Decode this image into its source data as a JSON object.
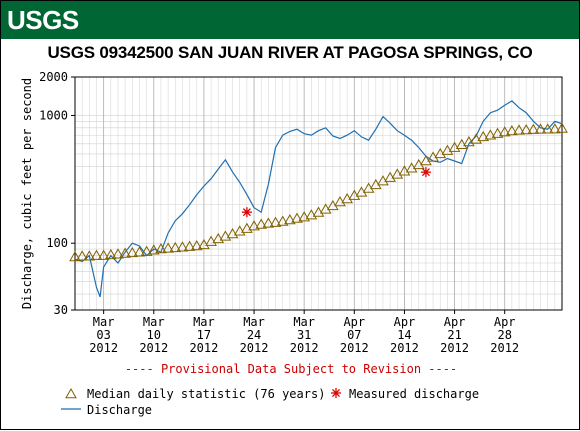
{
  "brand": {
    "logo_text": "USGS",
    "banner_color": "#006633"
  },
  "chart_data": {
    "type": "line",
    "title": "USGS 09342500 SAN JUAN RIVER AT PAGOSA SPRINGS, CO",
    "ylabel": "Discharge, cubic feet per second",
    "yscale": "log",
    "ylim": [
      30,
      2000
    ],
    "y_ticks": [
      {
        "value": 30,
        "label": "30"
      },
      {
        "value": 100,
        "label": "100"
      },
      {
        "value": 1000,
        "label": "1000"
      },
      {
        "value": 2000,
        "label": "2000"
      }
    ],
    "xlim": [
      "2012-02-28",
      "2012-05-06"
    ],
    "x_ticks": [
      {
        "date": "2012-03-03",
        "line1": "Mar",
        "line2": "03",
        "line3": "2012"
      },
      {
        "date": "2012-03-10",
        "line1": "Mar",
        "line2": "10",
        "line3": "2012"
      },
      {
        "date": "2012-03-17",
        "line1": "Mar",
        "line2": "17",
        "line3": "2012"
      },
      {
        "date": "2012-03-24",
        "line1": "Mar",
        "line2": "24",
        "line3": "2012"
      },
      {
        "date": "2012-03-31",
        "line1": "Mar",
        "line2": "31",
        "line3": "2012"
      },
      {
        "date": "2012-04-07",
        "line1": "Apr",
        "line2": "07",
        "line3": "2012"
      },
      {
        "date": "2012-04-14",
        "line1": "Apr",
        "line2": "14",
        "line3": "2012"
      },
      {
        "date": "2012-04-21",
        "line1": "Apr",
        "line2": "21",
        "line3": "2012"
      },
      {
        "date": "2012-04-28",
        "line1": "Apr",
        "line2": "28",
        "line3": "2012"
      }
    ],
    "grid": true,
    "provisional_note": "---- Provisional Data Subject to Revision ----",
    "series": [
      {
        "name": "Discharge",
        "kind": "line",
        "color": "#1f6fb0",
        "points": [
          [
            "2012-02-28",
            75
          ],
          [
            "2012-02-29",
            72
          ],
          [
            "2012-03-01",
            80
          ],
          [
            "2012-03-02",
            45
          ],
          [
            "2012-03-02T12",
            38
          ],
          [
            "2012-03-03",
            65
          ],
          [
            "2012-03-04",
            80
          ],
          [
            "2012-03-05",
            70
          ],
          [
            "2012-03-06",
            85
          ],
          [
            "2012-03-07",
            100
          ],
          [
            "2012-03-08",
            95
          ],
          [
            "2012-03-09",
            80
          ],
          [
            "2012-03-10",
            90
          ],
          [
            "2012-03-11",
            85
          ],
          [
            "2012-03-12",
            120
          ],
          [
            "2012-03-13",
            150
          ],
          [
            "2012-03-14",
            170
          ],
          [
            "2012-03-15",
            200
          ],
          [
            "2012-03-16",
            240
          ],
          [
            "2012-03-17",
            280
          ],
          [
            "2012-03-18",
            320
          ],
          [
            "2012-03-19",
            380
          ],
          [
            "2012-03-20",
            450
          ],
          [
            "2012-03-21",
            360
          ],
          [
            "2012-03-22",
            300
          ],
          [
            "2012-03-23",
            240
          ],
          [
            "2012-03-24",
            190
          ],
          [
            "2012-03-25",
            175
          ],
          [
            "2012-03-26",
            290
          ],
          [
            "2012-03-27",
            560
          ],
          [
            "2012-03-28",
            700
          ],
          [
            "2012-03-29",
            750
          ],
          [
            "2012-03-30",
            780
          ],
          [
            "2012-03-31",
            720
          ],
          [
            "2012-04-01",
            700
          ],
          [
            "2012-04-02",
            760
          ],
          [
            "2012-04-03",
            800
          ],
          [
            "2012-04-04",
            690
          ],
          [
            "2012-04-05",
            660
          ],
          [
            "2012-04-06",
            700
          ],
          [
            "2012-04-07",
            760
          ],
          [
            "2012-04-08",
            680
          ],
          [
            "2012-04-09",
            640
          ],
          [
            "2012-04-10",
            780
          ],
          [
            "2012-04-11",
            980
          ],
          [
            "2012-04-12",
            870
          ],
          [
            "2012-04-13",
            760
          ],
          [
            "2012-04-14",
            700
          ],
          [
            "2012-04-15",
            640
          ],
          [
            "2012-04-16",
            560
          ],
          [
            "2012-04-17",
            480
          ],
          [
            "2012-04-18",
            440
          ],
          [
            "2012-04-19",
            430
          ],
          [
            "2012-04-20",
            460
          ],
          [
            "2012-04-21",
            440
          ],
          [
            "2012-04-22",
            420
          ],
          [
            "2012-04-23",
            600
          ],
          [
            "2012-04-24",
            690
          ],
          [
            "2012-04-25",
            900
          ],
          [
            "2012-04-26",
            1050
          ],
          [
            "2012-04-27",
            1100
          ],
          [
            "2012-04-28",
            1200
          ],
          [
            "2012-04-29",
            1300
          ],
          [
            "2012-04-30",
            1150
          ],
          [
            "2012-05-01",
            1050
          ],
          [
            "2012-05-02",
            900
          ],
          [
            "2012-05-03",
            800
          ],
          [
            "2012-05-04",
            780
          ],
          [
            "2012-05-05",
            900
          ],
          [
            "2012-05-06",
            860
          ]
        ]
      },
      {
        "name": "Median daily statistic (76 years)",
        "kind": "markers",
        "marker": "triangle",
        "color": "#806000",
        "points": [
          [
            "2012-02-28",
            78
          ],
          [
            "2012-02-29",
            79
          ],
          [
            "2012-03-01",
            79
          ],
          [
            "2012-03-02",
            80
          ],
          [
            "2012-03-03",
            80
          ],
          [
            "2012-03-04",
            81
          ],
          [
            "2012-03-05",
            82
          ],
          [
            "2012-03-06",
            83
          ],
          [
            "2012-03-07",
            84
          ],
          [
            "2012-03-08",
            85
          ],
          [
            "2012-03-09",
            86
          ],
          [
            "2012-03-10",
            88
          ],
          [
            "2012-03-11",
            90
          ],
          [
            "2012-03-12",
            91
          ],
          [
            "2012-03-13",
            92
          ],
          [
            "2012-03-14",
            93
          ],
          [
            "2012-03-15",
            94
          ],
          [
            "2012-03-16",
            95
          ],
          [
            "2012-03-17",
            97
          ],
          [
            "2012-03-18",
            103
          ],
          [
            "2012-03-19",
            108
          ],
          [
            "2012-03-20",
            113
          ],
          [
            "2012-03-21",
            118
          ],
          [
            "2012-03-22",
            124
          ],
          [
            "2012-03-23",
            130
          ],
          [
            "2012-03-24",
            136
          ],
          [
            "2012-03-25",
            140
          ],
          [
            "2012-03-26",
            143
          ],
          [
            "2012-03-27",
            145
          ],
          [
            "2012-03-28",
            148
          ],
          [
            "2012-03-29",
            152
          ],
          [
            "2012-03-30",
            156
          ],
          [
            "2012-03-31",
            160
          ],
          [
            "2012-04-01",
            166
          ],
          [
            "2012-04-02",
            174
          ],
          [
            "2012-04-03",
            184
          ],
          [
            "2012-04-04",
            196
          ],
          [
            "2012-04-05",
            210
          ],
          [
            "2012-04-06",
            222
          ],
          [
            "2012-04-07",
            236
          ],
          [
            "2012-04-08",
            250
          ],
          [
            "2012-04-09",
            268
          ],
          [
            "2012-04-10",
            286
          ],
          [
            "2012-04-11",
            306
          ],
          [
            "2012-04-12",
            326
          ],
          [
            "2012-04-13",
            346
          ],
          [
            "2012-04-14",
            366
          ],
          [
            "2012-04-15",
            386
          ],
          [
            "2012-04-16",
            410
          ],
          [
            "2012-04-17",
            440
          ],
          [
            "2012-04-18",
            470
          ],
          [
            "2012-04-19",
            500
          ],
          [
            "2012-04-20",
            530
          ],
          [
            "2012-04-21",
            560
          ],
          [
            "2012-04-22",
            590
          ],
          [
            "2012-04-23",
            620
          ],
          [
            "2012-04-24",
            650
          ],
          [
            "2012-04-25",
            680
          ],
          [
            "2012-04-26",
            700
          ],
          [
            "2012-04-27",
            720
          ],
          [
            "2012-04-28",
            740
          ],
          [
            "2012-04-29",
            755
          ],
          [
            "2012-04-30",
            765
          ],
          [
            "2012-05-01",
            770
          ],
          [
            "2012-05-02",
            775
          ],
          [
            "2012-05-03",
            778
          ],
          [
            "2012-05-04",
            780
          ],
          [
            "2012-05-05",
            782
          ],
          [
            "2012-05-06",
            790
          ]
        ]
      },
      {
        "name": "Measured discharge",
        "kind": "markers",
        "marker": "asterisk",
        "color": "#dd0000",
        "points": [
          [
            "2012-03-23",
            175
          ],
          [
            "2012-04-17",
            360
          ]
        ]
      }
    ],
    "legend": {
      "placement": "bottom",
      "items": [
        {
          "key": "median",
          "label": "Median daily statistic (76 years)"
        },
        {
          "key": "measured",
          "label": "Measured discharge"
        },
        {
          "key": "discharge",
          "label": "Discharge"
        }
      ]
    }
  }
}
